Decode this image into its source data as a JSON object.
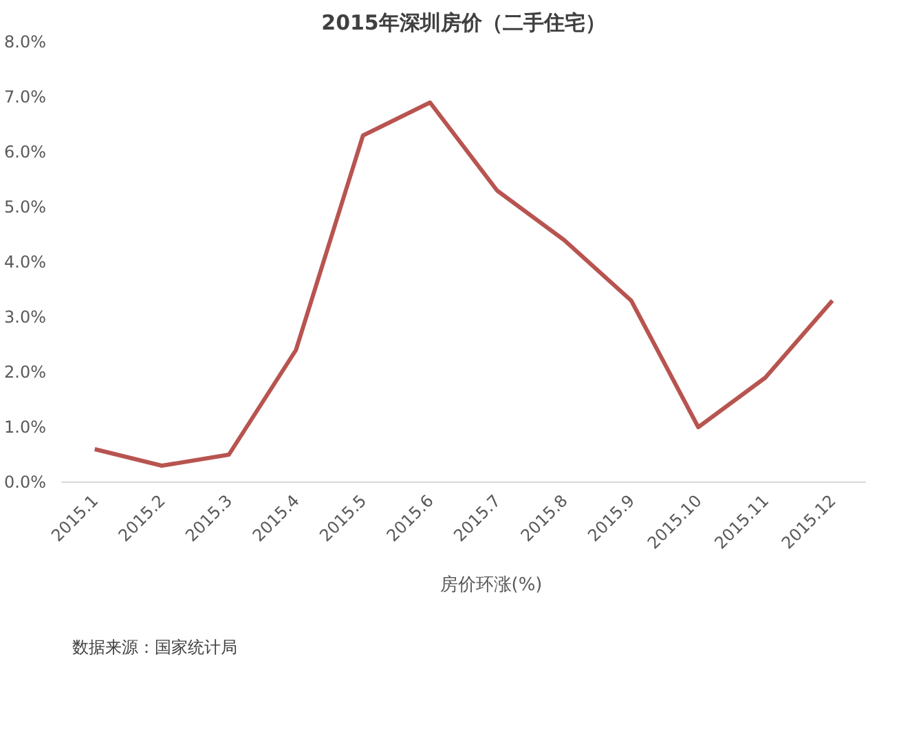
{
  "chart_data": {
    "type": "line",
    "title": "2015年深圳房价（二手住宅）",
    "categories": [
      "2015.1",
      "2015.2",
      "2015.3",
      "2015.4",
      "2015.5",
      "2015.6",
      "2015.7",
      "2015.8",
      "2015.9",
      "2015.10",
      "2015.11",
      "2015.12"
    ],
    "series": [
      {
        "name": "房价环涨(%)",
        "color": "#b85450",
        "values": [
          0.6,
          0.3,
          0.5,
          2.4,
          6.3,
          6.9,
          5.3,
          4.4,
          3.3,
          1.0,
          1.9,
          3.3
        ]
      }
    ],
    "ylim": [
      0,
      8
    ],
    "yticks": [
      {
        "value": 0,
        "label": "0.0%"
      },
      {
        "value": 1,
        "label": "1.0%"
      },
      {
        "value": 2,
        "label": "2.0%"
      },
      {
        "value": 3,
        "label": "3.0%"
      },
      {
        "value": 4,
        "label": "4.0%"
      },
      {
        "value": 5,
        "label": "5.0%"
      },
      {
        "value": 6,
        "label": "6.0%"
      },
      {
        "value": 7,
        "label": "7.0%"
      },
      {
        "value": 8,
        "label": "8.0%"
      }
    ],
    "grid": false,
    "legend": "bottom",
    "marker": "none",
    "line_style": "solid",
    "annotations": [
      "数据来源：国家统计局"
    ]
  }
}
